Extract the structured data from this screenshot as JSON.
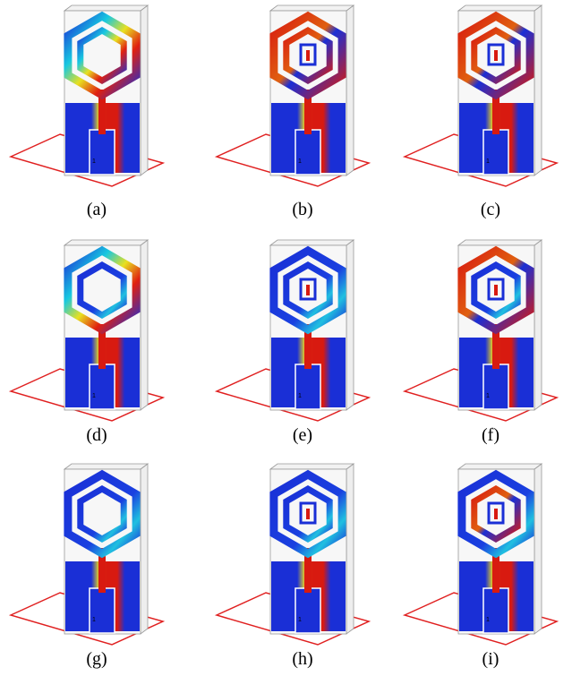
{
  "panels": [
    {
      "caption": "(a)",
      "port": "1"
    },
    {
      "caption": "(b)",
      "port": "1"
    },
    {
      "caption": "(c)",
      "port": "1"
    },
    {
      "caption": "(d)",
      "port": "1"
    },
    {
      "caption": "(e)",
      "port": "1"
    },
    {
      "caption": "(f)",
      "port": "1"
    },
    {
      "caption": "(g)",
      "port": "1"
    },
    {
      "caption": "(h)",
      "port": "1"
    },
    {
      "caption": "(i)",
      "port": "1"
    }
  ]
}
